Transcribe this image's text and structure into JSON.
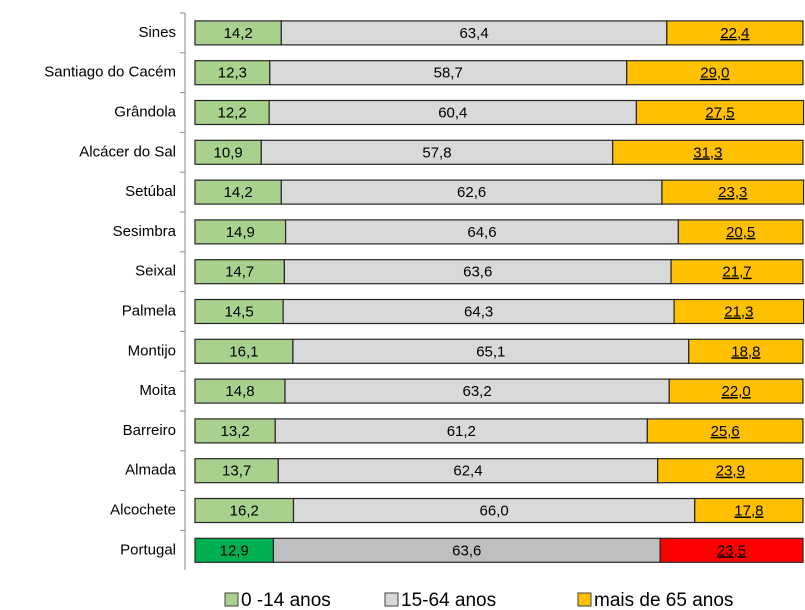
{
  "chart_data": {
    "type": "stacked-bar-horizontal",
    "categories": [
      "Sines",
      "Santiago do Cacém",
      "Grândola",
      "Alcácer do Sal",
      "Setúbal",
      "Sesimbra",
      "Seixal",
      "Palmela",
      "Montijo",
      "Moita",
      "Barreiro",
      "Almada",
      "Alcochete",
      "Portugal"
    ],
    "xlim": [
      0,
      100
    ],
    "legend": "bottom",
    "series": [
      {
        "name": "0 -14 anos",
        "color": "#a9d18e",
        "colors": [
          "#a9d18e",
          "#a9d18e",
          "#a9d18e",
          "#a9d18e",
          "#a9d18e",
          "#a9d18e",
          "#a9d18e",
          "#a9d18e",
          "#a9d18e",
          "#a9d18e",
          "#a9d18e",
          "#a9d18e",
          "#a9d18e",
          "#00b050"
        ],
        "values": [
          14.2,
          12.3,
          12.2,
          10.9,
          14.2,
          14.9,
          14.7,
          14.5,
          16.1,
          14.8,
          13.2,
          13.7,
          16.2,
          12.9
        ],
        "value_labels": [
          "14,2",
          "12,3",
          "12,2",
          "10,9",
          "14,2",
          "14,9",
          "14,7",
          "14,5",
          "16,1",
          "14,8",
          "13,2",
          "13,7",
          "16,2",
          "12,9"
        ]
      },
      {
        "name": "15-64 anos",
        "color": "#d9d9d9",
        "colors": [
          "#d9d9d9",
          "#d9d9d9",
          "#d9d9d9",
          "#d9d9d9",
          "#d9d9d9",
          "#d9d9d9",
          "#d9d9d9",
          "#d9d9d9",
          "#d9d9d9",
          "#d9d9d9",
          "#d9d9d9",
          "#d9d9d9",
          "#d9d9d9",
          "#bfbfbf"
        ],
        "values": [
          63.4,
          58.7,
          60.4,
          57.8,
          62.6,
          64.6,
          63.6,
          64.3,
          65.1,
          63.2,
          61.2,
          62.4,
          66.0,
          63.6
        ],
        "value_labels": [
          "63,4",
          "58,7",
          "60,4",
          "57,8",
          "62,6",
          "64,6",
          "63,6",
          "64,3",
          "65,1",
          "63,2",
          "61,2",
          "62,4",
          "66,0",
          "63,6"
        ]
      },
      {
        "name": "mais de 65 anos",
        "color": "#ffc000",
        "colors": [
          "#ffc000",
          "#ffc000",
          "#ffc000",
          "#ffc000",
          "#ffc000",
          "#ffc000",
          "#ffc000",
          "#ffc000",
          "#ffc000",
          "#ffc000",
          "#ffc000",
          "#ffc000",
          "#ffc000",
          "#ff0000"
        ],
        "values": [
          22.4,
          29.0,
          27.5,
          31.3,
          23.3,
          20.5,
          21.7,
          21.3,
          18.8,
          22.0,
          25.6,
          23.9,
          17.8,
          23.5
        ],
        "value_labels": [
          "22,4",
          "29,0",
          "27,5",
          "31,3",
          "23,3",
          "20,5",
          "21,7",
          "21,3",
          "18,8",
          "22,0",
          "25,6",
          "23,9",
          "17,8",
          "23,5"
        ]
      }
    ]
  }
}
